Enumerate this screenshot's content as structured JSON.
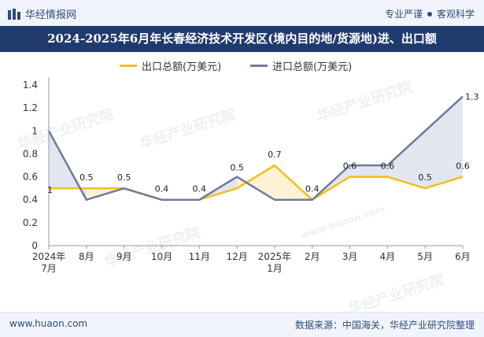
{
  "header": {
    "site_name": "华经情报网",
    "tagline_left": "专业严谨",
    "tagline_right": "客观科学"
  },
  "watermark": {
    "text": "华经产业研究院",
    "url": "www.huaon.com"
  },
  "footer": {
    "url": "www.huaon.com",
    "source": "数据来源：中国海关，华经产业研究院整理"
  },
  "colors": {
    "export": "#f7be16",
    "import": "#6e7b99",
    "header_bg": "#1f3b6e",
    "fill": "#c8d2e6"
  },
  "chart_data": {
    "type": "line",
    "title": "2024-2025年6月年长春经济技术开发区(境内目的地/货源地)进、出口额",
    "categories": [
      "2024年\n7月",
      "8月",
      "9月",
      "10月",
      "11月",
      "12月",
      "2025年\n1月",
      "2月",
      "3月",
      "4月",
      "5月",
      "6月"
    ],
    "series": [
      {
        "name": "出口总额(万美元)",
        "values": [
          0.5,
          0.5,
          0.5,
          0.4,
          0.4,
          0.5,
          0.7,
          0.4,
          0.6,
          0.6,
          0.5,
          0.6
        ]
      },
      {
        "name": "进口总额(万美元)",
        "values": [
          1.0,
          0.4,
          0.5,
          0.4,
          0.4,
          0.6,
          0.4,
          0.4,
          0.7,
          0.7,
          1.0,
          1.3
        ]
      }
    ],
    "data_labels": [
      "1",
      "0.5",
      "0.5",
      "0.4",
      "0.4",
      "0.5",
      "0.7",
      "0.4",
      "0.6",
      "0.6",
      "0.5",
      "0.6",
      "1.3"
    ],
    "ylim": [
      0,
      1.4
    ],
    "yticks": [
      "0",
      "0.2",
      "0.4",
      "0.6",
      "0.8",
      "1",
      "1.2",
      "1.4"
    ],
    "legend_position": "top-center",
    "grid": false
  }
}
